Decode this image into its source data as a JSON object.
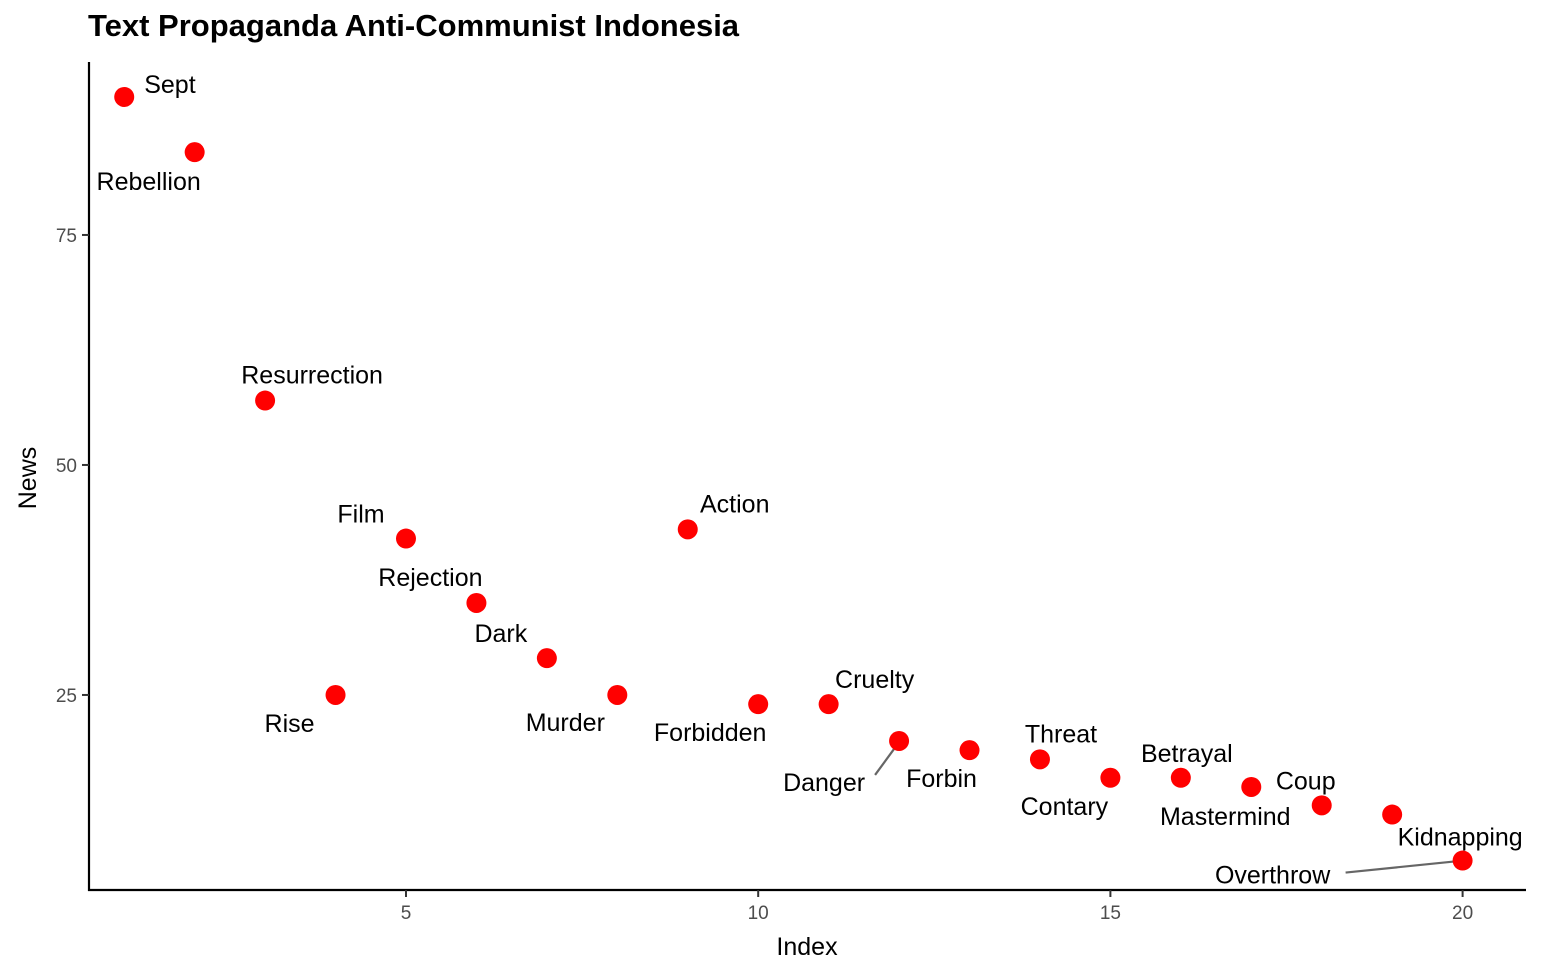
{
  "chart_data": {
    "type": "scatter",
    "title": "Text Propaganda Anti-Communist Indonesia",
    "xlabel": "Index",
    "ylabel": "News",
    "xlim": [
      0.5,
      20.9
    ],
    "ylim": [
      3.8,
      93.8
    ],
    "x_ticks": [
      5,
      10,
      15,
      20
    ],
    "y_ticks": [
      25,
      50,
      75
    ],
    "grid": false,
    "point_color": "#ff0000",
    "leader_color": "#666666",
    "points": [
      {
        "x": 1,
        "y": 90,
        "label": "Sept"
      },
      {
        "x": 2,
        "y": 84,
        "label": "Rebellion"
      },
      {
        "x": 3,
        "y": 57,
        "label": "Resurrection"
      },
      {
        "x": 4,
        "y": 25,
        "label": "Rise"
      },
      {
        "x": 5,
        "y": 42,
        "label": "Film"
      },
      {
        "x": 6,
        "y": 35,
        "label": "Rejection"
      },
      {
        "x": 7,
        "y": 29,
        "label": "Dark"
      },
      {
        "x": 8,
        "y": 25,
        "label": "Murder"
      },
      {
        "x": 9,
        "y": 43,
        "label": "Action"
      },
      {
        "x": 10,
        "y": 24,
        "label": "Forbidden"
      },
      {
        "x": 11,
        "y": 24,
        "label": "Cruelty"
      },
      {
        "x": 12,
        "y": 20,
        "label": "Danger"
      },
      {
        "x": 13,
        "y": 19,
        "label": "Forbin"
      },
      {
        "x": 14,
        "y": 18,
        "label": "Threat"
      },
      {
        "x": 15,
        "y": 16,
        "label": "Contary"
      },
      {
        "x": 16,
        "y": 16,
        "label": "Betrayal"
      },
      {
        "x": 17,
        "y": 15,
        "label": "Mastermind"
      },
      {
        "x": 18,
        "y": 13,
        "label": "Coup"
      },
      {
        "x": 19,
        "y": 12,
        "label": "Kidnapping"
      },
      {
        "x": 20,
        "y": 7,
        "label": "Overthrow"
      }
    ]
  }
}
